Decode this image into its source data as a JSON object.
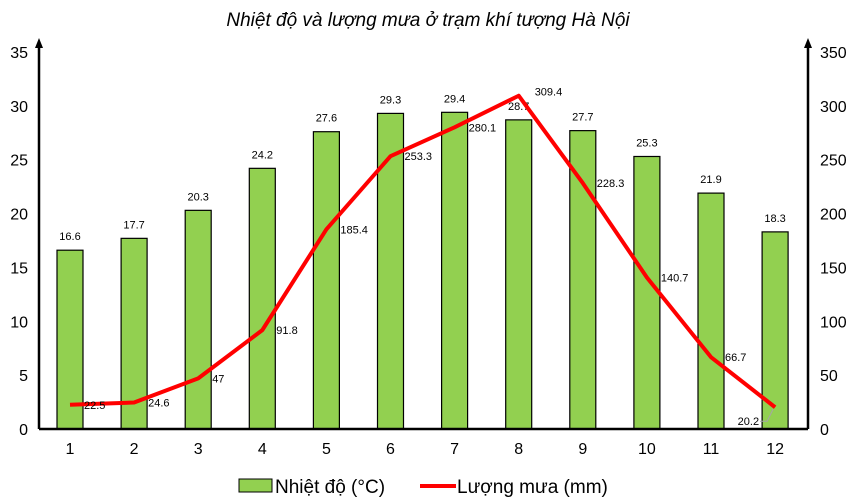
{
  "chart_data": {
    "type": "bar+line",
    "title": "Nhiệt độ và lượng mưa ở trạm khí tượng Hà Nội",
    "categories": [
      "1",
      "2",
      "3",
      "4",
      "5",
      "6",
      "7",
      "8",
      "9",
      "10",
      "11",
      "12"
    ],
    "series": [
      {
        "name": "Nhiệt độ (°C)",
        "type": "bar",
        "axis": "left",
        "color": "#92D050",
        "values": [
          16.6,
          17.7,
          20.3,
          24.2,
          27.6,
          29.3,
          29.4,
          28.7,
          27.7,
          25.3,
          21.9,
          18.3
        ]
      },
      {
        "name": "Lượng mưa (mm)",
        "type": "line",
        "axis": "right",
        "color": "#FF0000",
        "values": [
          22.5,
          24.6,
          47,
          91.8,
          185.4,
          253.3,
          280.1,
          309.4,
          228.3,
          140.7,
          66.7,
          20.2
        ]
      }
    ],
    "left_axis": {
      "label": "",
      "ylim": [
        0,
        35
      ],
      "ticks": [
        "0",
        "5",
        "10",
        "15",
        "20",
        "25",
        "30",
        "35"
      ]
    },
    "right_axis": {
      "label": "",
      "ylim": [
        0,
        350
      ],
      "ticks": [
        "0",
        "50",
        "100",
        "150",
        "200",
        "250",
        "300",
        "350"
      ]
    },
    "xlabel": "",
    "grid": false,
    "legend_position": "bottom"
  },
  "legend": {
    "bar_label": "Nhiệt độ (°C)",
    "line_label": "Lượng mưa (mm)"
  }
}
